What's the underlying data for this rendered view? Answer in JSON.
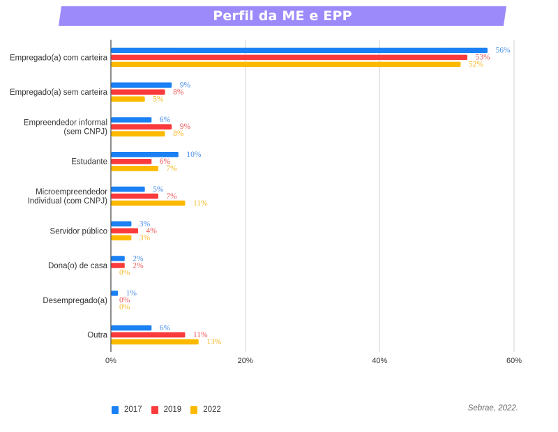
{
  "header": {
    "title": "Perfil da ME e EPP",
    "banner_color": "#9d8afa"
  },
  "source": "Sebrae, 2022.",
  "chart_data": {
    "type": "bar",
    "orientation": "horizontal",
    "title": "Perfil da ME e EPP",
    "xlabel": "",
    "ylabel": "",
    "xlim": [
      0,
      60
    ],
    "x_ticks": [
      0,
      20,
      40,
      60
    ],
    "x_tick_labels": [
      "0%",
      "20%",
      "40%",
      "60%"
    ],
    "grid": true,
    "legend_position": "bottom-left",
    "categories": [
      [
        "Empregado(a) com carteira"
      ],
      [
        "Empregado(a) sem carteira"
      ],
      [
        "Empreendedor informal",
        "(sem CNPJ)"
      ],
      [
        "Estudante"
      ],
      [
        "Microempreendedor",
        "Individual (com CNPJ)"
      ],
      [
        "Servidor público"
      ],
      [
        "Dona(o) de casa"
      ],
      [
        "Desempregado(a)"
      ],
      [
        "Outra"
      ]
    ],
    "series": [
      {
        "name": "2017",
        "color": "#1a80f3",
        "label_color": "#4a8fe8",
        "values": [
          56,
          9,
          6,
          10,
          5,
          3,
          2,
          1,
          6
        ]
      },
      {
        "name": "2019",
        "color": "#fb3b3b",
        "label_color": "#f25a5a",
        "values": [
          53,
          8,
          9,
          6,
          7,
          4,
          2,
          0,
          11
        ]
      },
      {
        "name": "2022",
        "color": "#fdb900",
        "label_color": "#f4b929",
        "values": [
          52,
          5,
          8,
          7,
          11,
          3,
          0,
          0,
          13
        ]
      }
    ],
    "value_suffix": "%"
  }
}
